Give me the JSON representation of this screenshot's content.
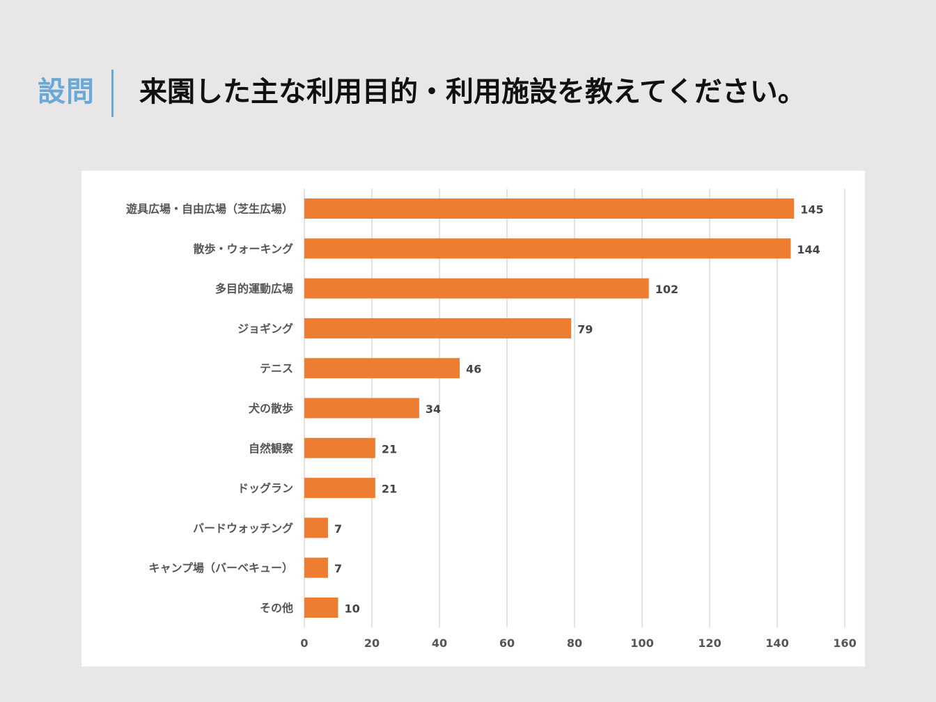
{
  "header": {
    "label": "設問",
    "question": "来園した主な利用目的・利用施設を教えてください。"
  },
  "colors": {
    "background": "#e8e6e7",
    "accent": "#6aa8d6",
    "bar": "#ed7d31",
    "grid": "#d9d9d9"
  },
  "chart_data": {
    "type": "bar",
    "orientation": "horizontal",
    "title": "",
    "xlabel": "",
    "ylabel": "",
    "categories": [
      "遊具広場・自由広場（芝生広場）",
      "散歩・ウォーキング",
      "多目的運動広場",
      "ジョギング",
      "テニス",
      "犬の散歩",
      "自然観察",
      "ドッグラン",
      "バードウォッチング",
      "キャンプ場（バーベキュー）",
      "その他"
    ],
    "values": [
      145,
      144,
      102,
      79,
      46,
      34,
      21,
      21,
      7,
      7,
      10
    ],
    "xlim": [
      0,
      160
    ],
    "xticks": [
      0,
      20,
      40,
      60,
      80,
      100,
      120,
      140,
      160
    ],
    "grid": true,
    "legend": "none"
  }
}
